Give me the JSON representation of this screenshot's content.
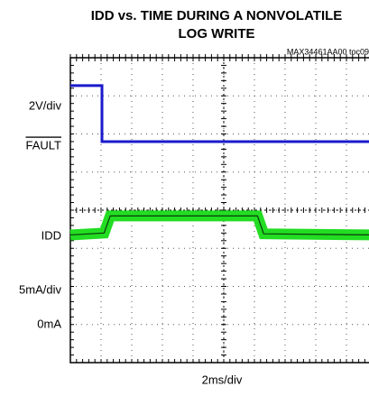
{
  "chart_data": {
    "type": "line",
    "title": [
      "IDD vs. TIME DURING A NONVOLATILE",
      "LOG WRITE"
    ],
    "note": "MAX34461AA00 toc09",
    "labels": [
      "2V/div",
      "FAULT",
      "IDD",
      "5mA/div",
      "0mA"
    ],
    "xlabel": "2ms/div",
    "xlim": [
      0,
      10
    ],
    "ylim": [
      0,
      8
    ],
    "series": [
      {
        "name": "FAULT",
        "color": "#1a1acc",
        "x": [
          0,
          1.03,
          1.03,
          10
        ],
        "values": [
          7.27,
          7.27,
          5.8,
          5.8
        ]
      },
      {
        "name": "IDD",
        "color": "#22dd22",
        "x": [
          0,
          1.1,
          1.3,
          6.1,
          6.3,
          10
        ],
        "values": [
          3.35,
          3.4,
          3.85,
          3.85,
          3.38,
          3.35
        ]
      }
    ]
  }
}
